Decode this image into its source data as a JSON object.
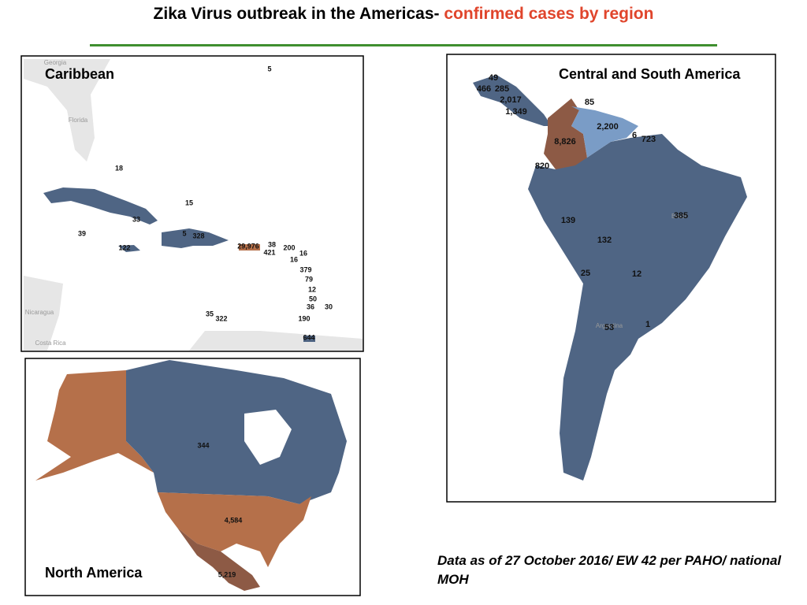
{
  "header": {
    "title": "Zika Virus outbreak in the Americas-",
    "title_highlight": "confirmed cases by region"
  },
  "caribbean": {
    "title": "Caribbean",
    "places": [
      "Georgia",
      "Florida",
      "Nicaragua",
      "Costa Rica"
    ],
    "labels": [
      "5",
      "18",
      "15",
      "33",
      "39",
      "5",
      "328",
      "122",
      "29,976",
      "38",
      "421",
      "200",
      "16",
      "16",
      "379",
      "79",
      "12",
      "50",
      "36",
      "30",
      "35",
      "322",
      "190",
      "644"
    ]
  },
  "north_america": {
    "title": "North America",
    "labels": [
      "344",
      "4,584",
      "5,219"
    ]
  },
  "central_south_america": {
    "title": "Central and South America",
    "places": [
      "Brazil",
      "Argentina"
    ],
    "labels": [
      "49",
      "466",
      "285",
      "2,017",
      "1,349",
      "85",
      "2,200",
      "8,826",
      "6",
      "723",
      "820",
      "139",
      "385",
      "132",
      "25",
      "12",
      "53",
      "1"
    ]
  },
  "footnote": "Data as of 27 October 2016/ EW 42 per PAHO/ national MOH"
}
